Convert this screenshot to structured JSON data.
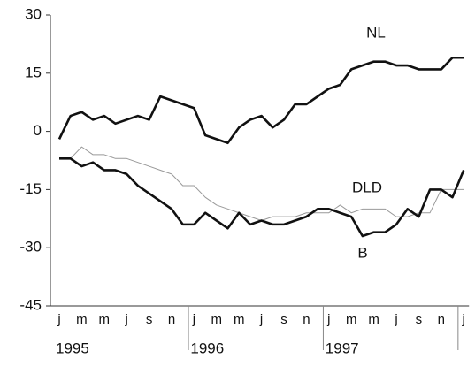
{
  "chart_data": {
    "type": "line",
    "categories": [
      "j",
      null,
      "m",
      null,
      "m",
      null,
      "j",
      null,
      "s",
      null,
      "n",
      null,
      "j",
      null,
      "m",
      null,
      "m",
      null,
      "j",
      null,
      "s",
      null,
      "n",
      null,
      "j",
      null,
      "m",
      null,
      "m",
      null,
      "j",
      null,
      "s",
      null,
      "n",
      null,
      "j"
    ],
    "years": [
      "1995",
      "1996",
      "1997"
    ],
    "series": [
      {
        "name": "NL",
        "color": "#111111",
        "width": 2.6,
        "values": [
          -2,
          4,
          5,
          3,
          4,
          2,
          3,
          4,
          3,
          9,
          8,
          7,
          6,
          -1,
          -2,
          -3,
          1,
          3,
          4,
          1,
          3,
          7,
          7,
          9,
          11,
          12,
          16,
          17,
          18,
          18,
          17,
          17,
          16,
          16,
          16,
          19,
          19
        ]
      },
      {
        "name": "DLD",
        "color": "#999999",
        "width": 1,
        "values": [
          -7,
          -7,
          -4,
          -6,
          -6,
          -7,
          -7,
          -8,
          -9,
          -10,
          -11,
          -14,
          -14,
          -17,
          -19,
          -20,
          -21,
          -22,
          -23,
          -22,
          -22,
          -22,
          -21,
          -21,
          -21,
          -19,
          -21,
          -20,
          -20,
          -20,
          -22,
          -22,
          -21,
          -21,
          -15,
          -15,
          -15
        ]
      },
      {
        "name": "B",
        "color": "#111111",
        "width": 2.6,
        "values": [
          -7,
          -7,
          -9,
          -8,
          -10,
          -10,
          -11,
          -14,
          -16,
          -18,
          -20,
          -24,
          -24,
          -21,
          -23,
          -25,
          -21,
          -24,
          -23,
          -24,
          -24,
          -23,
          -22,
          -20,
          -20,
          -21,
          -22,
          -27,
          -26,
          -26,
          -24,
          -20,
          -22,
          -15,
          -15,
          -17,
          -10
        ]
      }
    ],
    "ylim": [
      -45,
      30
    ],
    "yticks": [
      -45,
      -30,
      -15,
      0,
      15,
      30
    ]
  }
}
